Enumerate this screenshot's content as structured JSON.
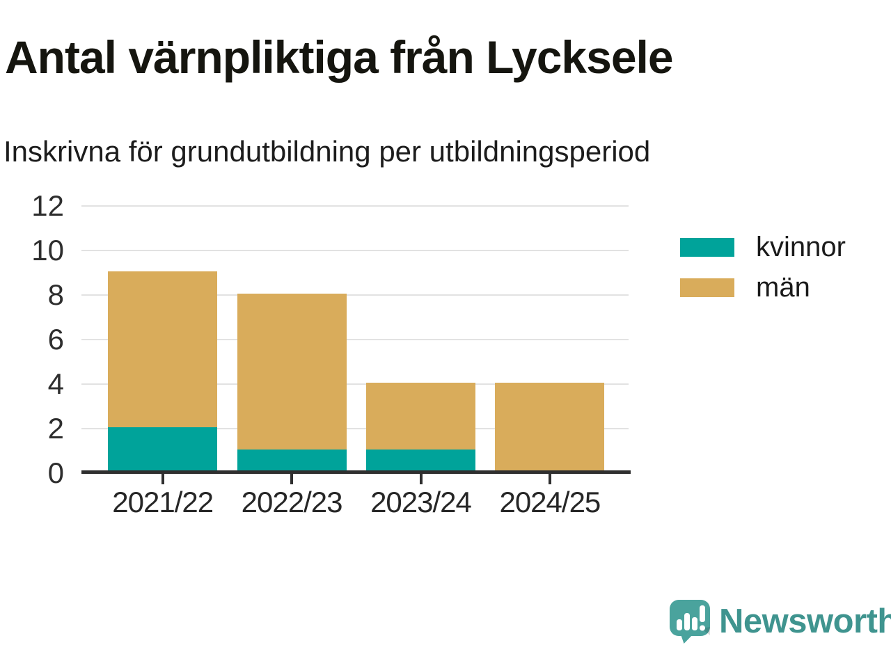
{
  "header": {
    "title": "Antal värnpliktiga från Lycksele",
    "subtitle": "Inskrivna för grundutbildning per utbildningsperiod"
  },
  "chart_data": {
    "type": "bar",
    "stacked": true,
    "title": "Antal värnpliktiga från Lycksele",
    "subtitle": "Inskrivna för grundutbildning per utbildningsperiod",
    "categories": [
      "2021/22",
      "2022/23",
      "2023/24",
      "2024/25"
    ],
    "series": [
      {
        "name": "kvinnor",
        "color": "#00A39A",
        "values": [
          2,
          1,
          1,
          0
        ]
      },
      {
        "name": "män",
        "color": "#D9AC5B",
        "values": [
          7,
          7,
          3,
          4
        ]
      }
    ],
    "totals": [
      9,
      8,
      4,
      4
    ],
    "xlabel": "",
    "ylabel": "",
    "ylim": [
      0,
      12
    ],
    "ytick_step": 2,
    "yticks": [
      0,
      2,
      4,
      6,
      8,
      10,
      12
    ],
    "grid": true,
    "legend_position": "right"
  },
  "footer": {
    "brand": "Newsworthy",
    "brand_color": "#3f948f",
    "logo_color": "#4aa39d"
  }
}
